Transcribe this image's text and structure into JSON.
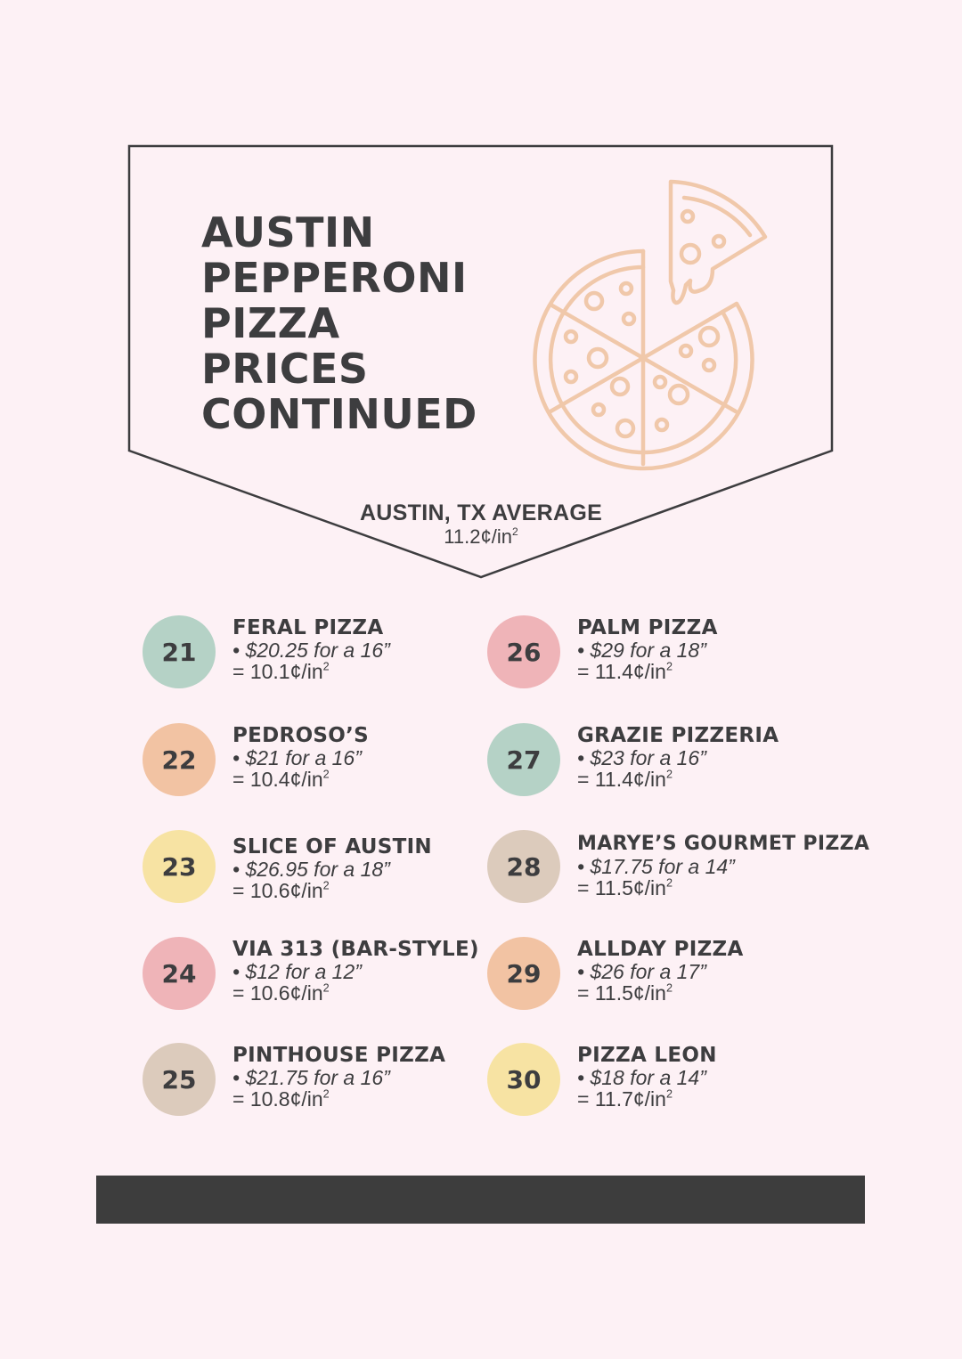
{
  "title": {
    "lines": [
      "AUSTIN",
      "PEPPERONI",
      "PIZZA",
      "PRICES",
      "CONTINUED"
    ]
  },
  "average": {
    "label": "AUSTIN, TX AVERAGE",
    "value": "11.2¢/in",
    "unit_superscript": "2"
  },
  "colors": {
    "background": "#fdf1f5",
    "text": "#3d3d3f",
    "pizza_outline": "#f0c8aa",
    "mint": "#b5d2c6",
    "peach": "#f2c3a3",
    "yellow": "#f7e3a3",
    "pink": "#efb4b8",
    "taupe": "#dccbbc",
    "footer_bar": "#3d3d3d"
  },
  "icons": {
    "illustration": "pizza-slice-icon"
  },
  "entries_left": [
    {
      "number": "21",
      "name": "FERAL PIZZA",
      "price": "• $20.25 for a 16”",
      "ratio": "= 10.1¢/in",
      "color": "#b5d2c6"
    },
    {
      "number": "22",
      "name": "PEDROSO’S",
      "price": "• $21 for a 16”",
      "ratio": "= 10.4¢/in",
      "color": "#f2c3a3"
    },
    {
      "number": "23",
      "name": "SLICE OF AUSTIN",
      "price": "• $26.95 for a 18”",
      "ratio": "= 10.6¢/in",
      "color": "#f7e3a3"
    },
    {
      "number": "24",
      "name": "VIA 313 (BAR-STYLE)",
      "price": "• $12 for a 12”",
      "ratio": "= 10.6¢/in",
      "color": "#efb4b8"
    },
    {
      "number": "25",
      "name": "PINTHOUSE PIZZA",
      "price": "• $21.75 for a 16”",
      "ratio": "= 10.8¢/in",
      "color": "#dccbbc"
    }
  ],
  "entries_right": [
    {
      "number": "26",
      "name": "PALM PIZZA",
      "price": "• $29 for a 18”",
      "ratio": "= 11.4¢/in",
      "color": "#efb4b8"
    },
    {
      "number": "27",
      "name": "GRAZIE PIZZERIA",
      "price": "• $23 for a 16”",
      "ratio": "= 11.4¢/in",
      "color": "#b5d2c6"
    },
    {
      "number": "28",
      "name": "MARYE’S GOURMET PIZZA",
      "price": "• $17.75 for a 14”",
      "ratio": "= 11.5¢/in",
      "color": "#dccbbc"
    },
    {
      "number": "29",
      "name": "ALLDAY PIZZA",
      "price": "• $26 for a 17”",
      "ratio": "= 11.5¢/in",
      "color": "#f2c3a3"
    },
    {
      "number": "30",
      "name": "PIZZA LEON",
      "price": "• $18 for a 14”",
      "ratio": "= 11.7¢/in",
      "color": "#f7e3a3"
    }
  ]
}
